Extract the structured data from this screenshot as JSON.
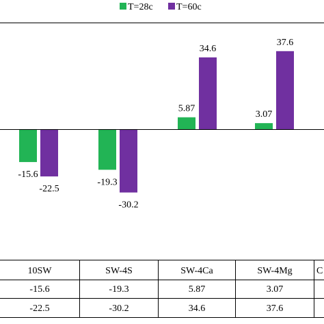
{
  "chart_data": {
    "type": "bar",
    "title": "",
    "xlabel": "",
    "ylabel": "",
    "ylim": [
      -40,
      45
    ],
    "grid": false,
    "legend_position": "top",
    "categories": [
      "10SW",
      "SW-4S",
      "SW-4Ca",
      "SW-4Mg"
    ],
    "truncated_category_glyph": "C",
    "series": [
      {
        "name": "T=28c",
        "color": "#22b455",
        "values": [
          -15.6,
          -19.3,
          5.87,
          3.07
        ],
        "labels": [
          "-15.6",
          "-19.3",
          "5.87",
          "3.07"
        ]
      },
      {
        "name": "T=60c",
        "color": "#7030a0",
        "values": [
          -22.5,
          -30.2,
          34.6,
          37.6
        ],
        "labels": [
          "-22.5",
          "-30.2",
          "34.6",
          "37.6"
        ]
      }
    ]
  }
}
